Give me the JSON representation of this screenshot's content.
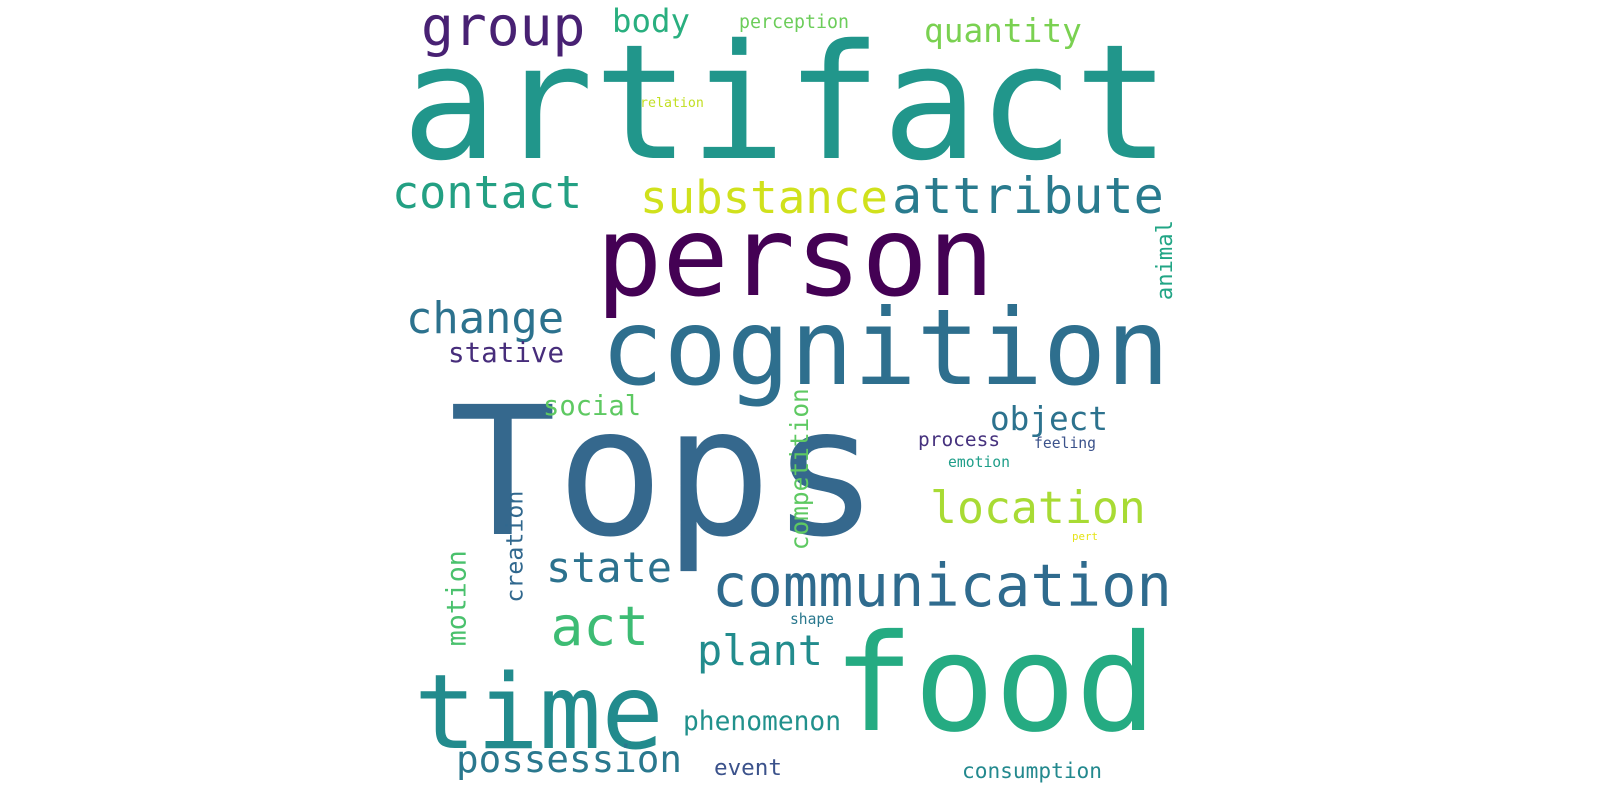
{
  "words": [
    {
      "id": "tops",
      "text": "Tops",
      "color": "#35688d"
    },
    {
      "id": "artifact",
      "text": "artifact",
      "color": "#21968b"
    },
    {
      "id": "person",
      "text": "person",
      "color": "#440154"
    },
    {
      "id": "cognition",
      "text": "cognition",
      "color": "#2e6f8e"
    },
    {
      "id": "food",
      "text": "food",
      "color": "#25ab82"
    },
    {
      "id": "time",
      "text": "time",
      "color": "#228b8d"
    },
    {
      "id": "communication",
      "text": "communication",
      "color": "#2f6b8e"
    },
    {
      "id": "group",
      "text": "group",
      "color": "#482173"
    },
    {
      "id": "contact",
      "text": "contact",
      "color": "#23a083"
    },
    {
      "id": "substance",
      "text": "substance",
      "color": "#d0e11c"
    },
    {
      "id": "attribute",
      "text": "attribute",
      "color": "#297b8e"
    },
    {
      "id": "change",
      "text": "change",
      "color": "#2c728e"
    },
    {
      "id": "location",
      "text": "location",
      "color": "#a8db34"
    },
    {
      "id": "act",
      "text": "act",
      "color": "#3dbc74"
    },
    {
      "id": "state",
      "text": "state",
      "color": "#2c728e"
    },
    {
      "id": "plant",
      "text": "plant",
      "color": "#228c8d"
    },
    {
      "id": "possession",
      "text": "possession",
      "color": "#2a788e"
    },
    {
      "id": "object",
      "text": "object",
      "color": "#2c728e"
    },
    {
      "id": "quantity",
      "text": "quantity",
      "color": "#7ad151"
    },
    {
      "id": "body",
      "text": "body",
      "color": "#29af7f"
    },
    {
      "id": "stative",
      "text": "stative",
      "color": "#472d7b"
    },
    {
      "id": "social",
      "text": "social",
      "color": "#5ec962"
    },
    {
      "id": "phenomenon",
      "text": "phenomenon",
      "color": "#21918c"
    },
    {
      "id": "consumption",
      "text": "consumption",
      "color": "#23898e"
    },
    {
      "id": "event",
      "text": "event",
      "color": "#3b528b"
    },
    {
      "id": "competition",
      "text": "competition",
      "color": "#5ec962"
    },
    {
      "id": "creation",
      "text": "creation",
      "color": "#31688e"
    },
    {
      "id": "motion",
      "text": "motion",
      "color": "#4ac16d"
    },
    {
      "id": "animal",
      "text": "animal",
      "color": "#21a585"
    },
    {
      "id": "process",
      "text": "process",
      "color": "#46327e"
    },
    {
      "id": "perception",
      "text": "perception",
      "color": "#6ccd5a"
    },
    {
      "id": "feeling",
      "text": "feeling",
      "color": "#3b528b"
    },
    {
      "id": "emotion",
      "text": "emotion",
      "color": "#1f9e89"
    },
    {
      "id": "shape",
      "text": "shape",
      "color": "#2a788e"
    },
    {
      "id": "relation",
      "text": "relation",
      "color": "#c2df23"
    },
    {
      "id": "pert",
      "text": "pert",
      "color": "#e5e419"
    }
  ]
}
